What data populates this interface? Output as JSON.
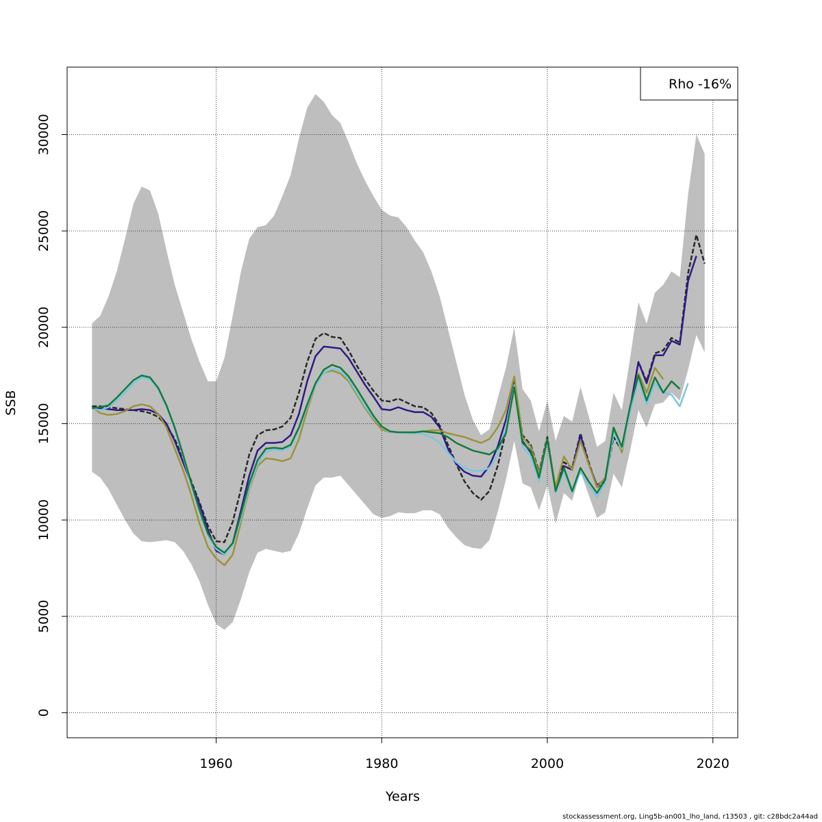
{
  "chart_data": {
    "type": "line",
    "xlabel": "Years",
    "ylabel": "SSB",
    "xlim": [
      1942,
      2023
    ],
    "ylim": [
      -1300,
      33500
    ],
    "x_ticks": [
      1960,
      1980,
      2000,
      2020
    ],
    "y_ticks": [
      0,
      5000,
      10000,
      15000,
      20000,
      25000,
      30000
    ],
    "grid": true,
    "legend": {
      "position": "top-right",
      "text": "Rho -16%"
    },
    "band": {
      "color": "#bebebe",
      "years": [
        1945,
        1946,
        1947,
        1948,
        1949,
        1950,
        1951,
        1952,
        1953,
        1954,
        1955,
        1956,
        1957,
        1958,
        1959,
        1960,
        1961,
        1962,
        1963,
        1964,
        1965,
        1966,
        1967,
        1968,
        1969,
        1970,
        1971,
        1972,
        1973,
        1974,
        1975,
        1976,
        1977,
        1978,
        1979,
        1980,
        1981,
        1982,
        1983,
        1984,
        1985,
        1986,
        1987,
        1988,
        1989,
        1990,
        1991,
        1992,
        1993,
        1994,
        1995,
        1996,
        1997,
        1998,
        1999,
        2000,
        2001,
        2002,
        2003,
        2004,
        2005,
        2006,
        2007,
        2008,
        2009,
        2010,
        2011,
        2012,
        2013,
        2014,
        2015,
        2016,
        2017,
        2018,
        2019
      ],
      "upper": [
        20200,
        20600,
        21600,
        22900,
        24600,
        26400,
        27300,
        27100,
        25900,
        24000,
        22200,
        20800,
        19400,
        18200,
        17200,
        17200,
        18400,
        20600,
        22900,
        24600,
        25200,
        25300,
        25800,
        26800,
        27900,
        29800,
        31400,
        32100,
        31700,
        31000,
        30600,
        29600,
        28500,
        27600,
        26800,
        26100,
        25800,
        25700,
        25200,
        24500,
        23900,
        22900,
        21600,
        19900,
        18200,
        16500,
        15200,
        14400,
        14700,
        16300,
        17900,
        20000,
        16800,
        16200,
        14600,
        16200,
        14100,
        15400,
        15100,
        16900,
        15400,
        13800,
        14100,
        16600,
        15700,
        18400,
        21300,
        20200,
        21800,
        22200,
        22900,
        22600,
        26900,
        30000,
        29000
      ],
      "lower": [
        12500,
        12200,
        11600,
        10800,
        10000,
        9300,
        8900,
        8850,
        8900,
        8950,
        8850,
        8400,
        7700,
        6800,
        5600,
        4600,
        4300,
        4700,
        5900,
        7300,
        8300,
        8500,
        8400,
        8300,
        8400,
        9300,
        10600,
        11800,
        12200,
        12200,
        12300,
        11800,
        11300,
        10800,
        10300,
        10100,
        10200,
        10400,
        10350,
        10350,
        10500,
        10500,
        10300,
        9600,
        9100,
        8700,
        8550,
        8500,
        8950,
        10400,
        12100,
        14100,
        11900,
        11700,
        10500,
        11800,
        9800,
        11400,
        11000,
        12500,
        11300,
        10100,
        10400,
        12400,
        11700,
        13600,
        15700,
        14800,
        16000,
        16100,
        16600,
        16200,
        17800,
        19600,
        18700
      ]
    },
    "series": [
      {
        "color": "#282828",
        "dashed": true,
        "x": [
          1945,
          1946,
          1947,
          1948,
          1949,
          1950,
          1951,
          1952,
          1953,
          1954,
          1955,
          1956,
          1957,
          1958,
          1959,
          1960,
          1961,
          1962,
          1963,
          1964,
          1965,
          1966,
          1967,
          1968,
          1969,
          1970,
          1971,
          1972,
          1973,
          1974,
          1975,
          1976,
          1977,
          1978,
          1979,
          1980,
          1981,
          1982,
          1983,
          1984,
          1985,
          1986,
          1987,
          1988,
          1989,
          1990,
          1991,
          1992,
          1993,
          1994,
          1995,
          1996,
          1997,
          1998,
          1999,
          2000,
          2001,
          2002,
          2003,
          2004,
          2005,
          2006,
          2007,
          2008,
          2009,
          2010,
          2011,
          2012,
          2013,
          2014,
          2015,
          2016,
          2017,
          2018,
          2019
        ],
        "y": [
          15900,
          15900,
          15850,
          15800,
          15750,
          15700,
          15650,
          15550,
          15350,
          14900,
          14200,
          13200,
          12000,
          10900,
          9700,
          8900,
          8850,
          9900,
          11600,
          13400,
          14400,
          14650,
          14700,
          14850,
          15300,
          16600,
          18200,
          19400,
          19700,
          19500,
          19450,
          18800,
          18000,
          17300,
          16700,
          16200,
          16150,
          16300,
          16100,
          15900,
          15850,
          15550,
          14900,
          13900,
          12900,
          12000,
          11400,
          11050,
          11500,
          12800,
          14600,
          17200,
          14400,
          13900,
          12500,
          14300,
          11600,
          13000,
          12700,
          14500,
          13000,
          11700,
          12000,
          14300,
          13600,
          15700,
          18200,
          17200,
          18650,
          18800,
          19450,
          19200,
          22800,
          24800,
          23300
        ]
      },
      {
        "color": "#2e1a87",
        "dashed": false,
        "x": [
          1945,
          1946,
          1947,
          1948,
          1949,
          1950,
          1951,
          1952,
          1953,
          1954,
          1955,
          1956,
          1957,
          1958,
          1959,
          1960,
          1961,
          1962,
          1963,
          1964,
          1965,
          1966,
          1967,
          1968,
          1969,
          1970,
          1971,
          1972,
          1973,
          1974,
          1975,
          1976,
          1977,
          1978,
          1979,
          1980,
          1981,
          1982,
          1983,
          1984,
          1985,
          1986,
          1987,
          1988,
          1989,
          1990,
          1991,
          1992,
          1993,
          1994,
          1995,
          1996,
          1997,
          1998,
          1999,
          2000,
          2001,
          2002,
          2003,
          2004,
          2005,
          2006,
          2007,
          2008,
          2009,
          2010,
          2011,
          2012,
          2013,
          2014,
          2015,
          2016,
          2017,
          2018
        ],
        "y": [
          15850,
          15800,
          15750,
          15700,
          15700,
          15700,
          15750,
          15700,
          15500,
          15000,
          14100,
          13000,
          11900,
          10800,
          9500,
          8400,
          8200,
          8800,
          10500,
          12300,
          13600,
          14000,
          14000,
          14050,
          14400,
          15500,
          17200,
          18500,
          19000,
          18950,
          18900,
          18400,
          17700,
          17000,
          16400,
          15750,
          15700,
          15850,
          15700,
          15600,
          15600,
          15350,
          14800,
          13700,
          12900,
          12500,
          12300,
          12250,
          12800,
          13800,
          15200,
          17100,
          14100,
          13500,
          12300,
          14200,
          11500,
          12800,
          12600,
          14400,
          12900,
          11800,
          12100,
          14600,
          13600,
          15800,
          18200,
          17100,
          18550,
          18550,
          19300,
          19100,
          22400,
          23700
        ]
      },
      {
        "color": "#9b9337",
        "dashed": false,
        "x": [
          1945,
          1946,
          1947,
          1948,
          1949,
          1950,
          1951,
          1952,
          1953,
          1954,
          1955,
          1956,
          1957,
          1958,
          1959,
          1960,
          1961,
          1962,
          1963,
          1964,
          1965,
          1966,
          1967,
          1968,
          1969,
          1970,
          1971,
          1972,
          1973,
          1974,
          1975,
          1976,
          1977,
          1978,
          1979,
          1980,
          1981,
          1982,
          1983,
          1984,
          1985,
          1986,
          1987,
          1988,
          1989,
          1990,
          1991,
          1992,
          1993,
          1994,
          1995,
          1996,
          1997,
          1998,
          1999,
          2000,
          2001,
          2002,
          2003,
          2004,
          2005,
          2006,
          2007,
          2008,
          2009,
          2010,
          2011,
          2012,
          2013,
          2014
        ],
        "y": [
          15850,
          15550,
          15450,
          15500,
          15650,
          15900,
          16000,
          15900,
          15500,
          14800,
          13700,
          12600,
          11300,
          9800,
          8600,
          8000,
          7650,
          8200,
          9900,
          11600,
          12800,
          13200,
          13150,
          13050,
          13200,
          14200,
          15700,
          17000,
          17650,
          17750,
          17600,
          17200,
          16500,
          15800,
          15200,
          14700,
          14550,
          14550,
          14550,
          14550,
          14600,
          14650,
          14650,
          14500,
          14400,
          14300,
          14150,
          14000,
          14200,
          14800,
          15700,
          17450,
          14300,
          13800,
          12400,
          14200,
          11700,
          13300,
          12600,
          14100,
          12900,
          11700,
          12200,
          14700,
          13500,
          15800,
          17600,
          16600,
          17900,
          17300
        ]
      },
      {
        "color": "#7cc6e0",
        "dashed": false,
        "x": [
          1945,
          1946,
          1947,
          1948,
          1949,
          1950,
          1951,
          1952,
          1953,
          1954,
          1955,
          1956,
          1957,
          1958,
          1959,
          1960,
          1961,
          1962,
          1963,
          1964,
          1965,
          1966,
          1967,
          1968,
          1969,
          1970,
          1971,
          1972,
          1973,
          1974,
          1975,
          1976,
          1977,
          1978,
          1979,
          1980,
          1981,
          1982,
          1983,
          1984,
          1985,
          1986,
          1987,
          1988,
          1989,
          1990,
          1991,
          1992,
          1993,
          1994,
          1995,
          1996,
          1997,
          1998,
          1999,
          2000,
          2001,
          2002,
          2003,
          2004,
          2005,
          2006,
          2007,
          2008,
          2009,
          2010,
          2011,
          2012,
          2013,
          2014,
          2015,
          2016,
          2017
        ],
        "y": [
          15750,
          15700,
          15850,
          16200,
          16600,
          17100,
          17400,
          17300,
          16800,
          15900,
          14700,
          13300,
          11800,
          10400,
          9200,
          8500,
          8200,
          8700,
          10100,
          11700,
          12900,
          13550,
          13650,
          13600,
          13800,
          14700,
          15900,
          17000,
          17650,
          17850,
          17750,
          17300,
          16600,
          15900,
          15300,
          14850,
          14550,
          14550,
          14500,
          14500,
          14450,
          14300,
          14000,
          13500,
          13000,
          12700,
          12550,
          12550,
          12700,
          13400,
          14800,
          17000,
          13800,
          13300,
          12000,
          14100,
          11400,
          12500,
          11400,
          12500,
          11800,
          11200,
          11900,
          14500,
          13700,
          15600,
          17300,
          16000,
          17100,
          16600,
          16500,
          15900,
          17100
        ]
      },
      {
        "color": "#137a3b",
        "dashed": false,
        "x": [
          1945,
          1946,
          1947,
          1948,
          1949,
          1950,
          1951,
          1952,
          1953,
          1954,
          1955,
          1956,
          1957,
          1958,
          1959,
          1960,
          1961,
          1962,
          1963,
          1964,
          1965,
          1966,
          1967,
          1968,
          1969,
          1970,
          1971,
          1972,
          1973,
          1974,
          1975,
          1976,
          1977,
          1978,
          1979,
          1980,
          1981,
          1982,
          1983,
          1984,
          1985,
          1986,
          1987,
          1988,
          1989,
          1990,
          1991,
          1992,
          1993,
          1994,
          1995,
          1996,
          1997,
          1998,
          1999,
          2000,
          2001,
          2002,
          2003,
          2004,
          2005,
          2006,
          2007,
          2008,
          2009,
          2010,
          2011,
          2012,
          2013,
          2014,
          2015,
          2016
        ],
        "y": [
          15800,
          15850,
          15950,
          16350,
          16800,
          17250,
          17500,
          17400,
          16850,
          15950,
          14800,
          13400,
          11900,
          10500,
          9300,
          8600,
          8300,
          8800,
          10300,
          11900,
          13100,
          13700,
          13750,
          13700,
          13900,
          14800,
          16000,
          17100,
          17800,
          18050,
          17900,
          17450,
          16800,
          16100,
          15400,
          14850,
          14600,
          14550,
          14550,
          14550,
          14600,
          14550,
          14500,
          14300,
          14000,
          13800,
          13600,
          13500,
          13400,
          13700,
          14500,
          16900,
          14000,
          13600,
          12200,
          14200,
          11500,
          12700,
          11500,
          12700,
          12000,
          11400,
          12100,
          14800,
          13800,
          15900,
          17500,
          16200,
          17400,
          16600,
          17200,
          16800
        ]
      }
    ]
  },
  "footer": "stockassessment.org, Ling5b-an001_lho_land, r13503 , git: c28bdc2a44ad"
}
